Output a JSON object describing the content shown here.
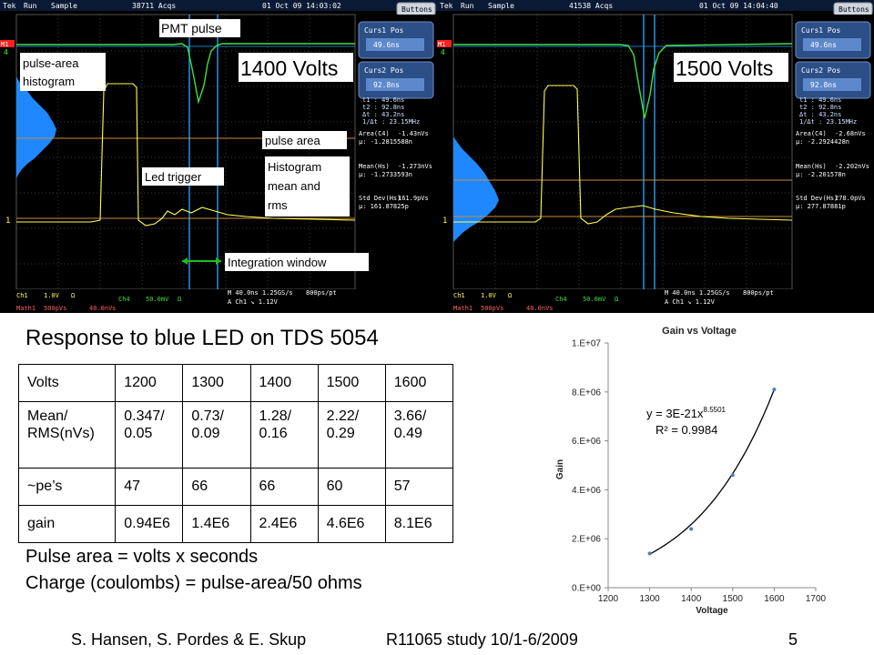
{
  "scope_left": {
    "header": {
      "brand": "Tek",
      "mode": "Run",
      "acq_mode": "Sample",
      "acqs": "38711 Acqs",
      "datetime": "01 Oct 09 14:03:02",
      "buttons": "Buttons"
    },
    "voltage": "1400 Volts",
    "panel": {
      "curs1_label": "Curs1 Pos",
      "curs1_value": "49.6ns",
      "curs2_label": "Curs2 Pos",
      "curs2_value": "92.8ns",
      "t1": "t1 :     49.6ns",
      "t2": "t2 :     92.8ns",
      "dt": "Δt :     43.2ns",
      "inv_dt": "1/Δt :  23.15MHz",
      "area_label": "Area(C4)",
      "area_value": "-1.43nVs",
      "area_mu": "μ: -1.2815588n",
      "mean_label": "Mean(Hs)",
      "mean_value": "-1.273nVs",
      "mean_mu": "μ: -1.2733593n",
      "std_label": "Std Dev(Hs)",
      "std_value": "161.9pVs",
      "std_mu": "μ: 161.87825p"
    },
    "footer": {
      "ch1": "Ch1",
      "ch1_scale": "1.0V",
      "ch1_omega": "Ω",
      "ch4": "Ch4",
      "ch4_scale": "50.0mV",
      "ch4_omega": "Ω",
      "math1": "Math1",
      "math1_scale": "500pVs",
      "math1_scale2": "40.0nVs",
      "timebase": "M 40.0ns  1.25GS/s",
      "resolution": "800ps/pt",
      "trigger": "A  Ch1  ↘  1.12V"
    },
    "marker_m1": "M1",
    "marker_4": "4",
    "marker_1": "1"
  },
  "scope_right": {
    "header": {
      "brand": "Tek",
      "mode": "Run",
      "acq_mode": "Sample",
      "acqs": "41538 Acqs",
      "datetime": "01 Oct 09 14:04:40",
      "buttons": "Buttons"
    },
    "voltage": "1500 Volts",
    "panel": {
      "curs1_label": "Curs1 Pos",
      "curs1_value": "49.6ns",
      "curs2_label": "Curs2 Pos",
      "curs2_value": "92.8ns",
      "t1": "t1 :     49.6ns",
      "t2": "t2 :     92.8ns",
      "dt": "Δt :     43.2ns",
      "inv_dt": "1/Δt :  23.15MHz",
      "area_label": "Area(C4)",
      "area_value": "-2.68nVs",
      "area_mu": "μ: -2.2924428n",
      "mean_label": "Mean(Hs)",
      "mean_value": "-2.202nVs",
      "mean_mu": "μ: -2.201578n",
      "std_label": "Std Dev(Hs)",
      "std_value": "278.0pVs",
      "std_mu": "μ: 277.87881p"
    },
    "footer": {
      "ch1": "Ch1",
      "ch1_scale": "1.0V",
      "ch1_omega": "Ω",
      "ch4": "Ch4",
      "ch4_scale": "50.0mV",
      "ch4_omega": "Ω",
      "math1": "Math1",
      "math1_scale": "500pVs",
      "math1_scale2": "40.0nVs",
      "timebase": "M 40.0ns  1.25GS/s",
      "resolution": "800ps/pt",
      "trigger": "A  Ch1  ↘  1.12V"
    },
    "marker_m1": "M1",
    "marker_4": "4",
    "marker_1": "1"
  },
  "annotations": {
    "pmt_pulse": "PMT pulse",
    "pulse_area_hist_1": "pulse-area",
    "pulse_area_hist_2": "histogram",
    "pulse_area": "pulse area",
    "histogram_1": "Histogram",
    "histogram_2": "mean and",
    "histogram_3": "rms",
    "led_trigger": "Led trigger",
    "integration_window": "Integration window"
  },
  "heading": "Response to blue LED on TDS 5054",
  "table": {
    "rows": [
      [
        "Volts",
        "1200",
        "1300",
        "1400",
        "1500",
        "1600"
      ],
      [
        "Mean/ RMS(nVs)",
        "0.347/ 0.05",
        "0.73/ 0.09",
        "1.28/ 0.16",
        "2.22/ 0.29",
        "3.66/ 0.49"
      ],
      [
        "~pe’s",
        "47",
        "66",
        "66",
        "60",
        "57"
      ],
      [
        "gain",
        "0.94E6",
        "1.4E6",
        "2.4E6",
        "4.6E6",
        "8.1E6"
      ]
    ]
  },
  "notes": {
    "line1": "Pulse area = volts x seconds",
    "line2": "Charge (coulombs) = pulse-area/50 ohms"
  },
  "footer": {
    "authors": "S. Hansen, S. Pordes & E. Skup",
    "study": "R11065 study 10/1-6/2009",
    "page": "5"
  },
  "chart_data": {
    "type": "scatter",
    "title": "Gain vs Voltage",
    "xlabel": "Voltage",
    "ylabel": "Gain",
    "xlim": [
      1200,
      1700
    ],
    "ylim": [
      0,
      10000000
    ],
    "x_ticks": [
      "1200",
      "1300",
      "1400",
      "1500",
      "1600",
      "1700"
    ],
    "y_ticks": [
      "0.E+00",
      "2.E+06",
      "4.E+06",
      "6.E+06",
      "8.E+06",
      "1.E+07"
    ],
    "points": [
      {
        "x": 1300,
        "y": 1400000
      },
      {
        "x": 1400,
        "y": 2400000
      },
      {
        "x": 1500,
        "y": 4600000
      },
      {
        "x": 1600,
        "y": 8100000
      }
    ],
    "fit_equation": "y = 3E-21x",
    "fit_exponent": "8.5501",
    "fit_r2": "R² = 0.9984",
    "colors": {
      "points": "#4a7ebb",
      "fit": "#000000"
    },
    "grid": false,
    "legend": "none"
  }
}
